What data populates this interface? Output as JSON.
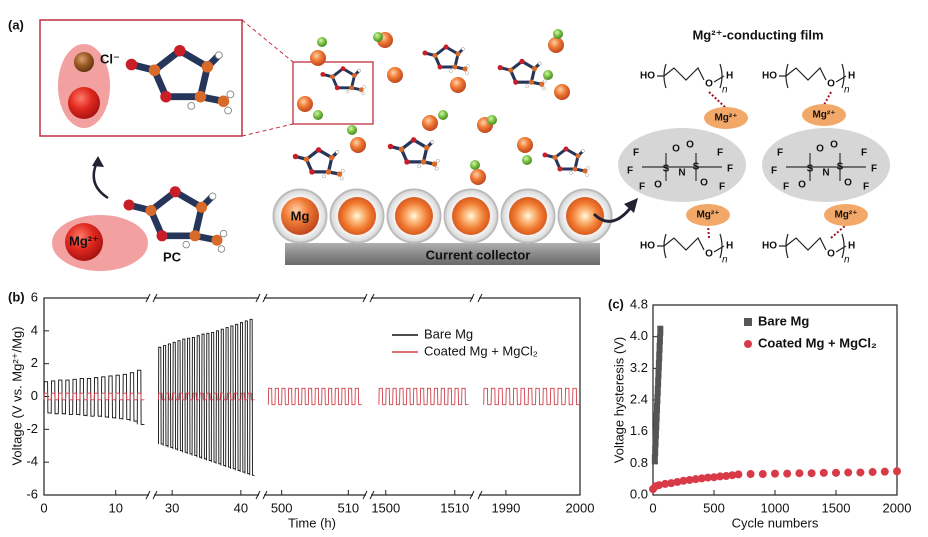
{
  "diagram": {
    "panel_label": "(a)",
    "inset_ion": "Cl⁻",
    "cation": "Mg²⁺",
    "solvent": "PC",
    "electrode": "Mg",
    "collector": "Current collector",
    "film_title": "Mg²⁺-conducting film",
    "film_cations": [
      "Mg²⁺",
      "Mg²⁺",
      "Mg²⁺",
      "Mg²⁺"
    ],
    "chains": [
      {
        "end1": "HO",
        "ether": "O",
        "end2": "H",
        "repeat": "n"
      },
      {
        "end1": "HO",
        "ether": "O",
        "end2": "H",
        "repeat": "n"
      },
      {
        "end1": "HO",
        "ether": "O",
        "end2": "H",
        "repeat": "n"
      },
      {
        "end1": "HO",
        "ether": "O",
        "end2": "H",
        "repeat": "n"
      }
    ],
    "anion_atoms": [
      "F",
      "F",
      "F",
      "O",
      "S",
      "O",
      "N",
      "O",
      "S",
      "O",
      "F",
      "F",
      "F"
    ]
  },
  "chart_data": [
    {
      "type": "line",
      "panel_label": "(b)",
      "xlabel": "Time (h)",
      "ylabel": "Voltage (V vs. Mg²⁺/Mg)",
      "x_segments": [
        [
          0,
          14.5
        ],
        [
          27.5,
          42.5
        ],
        [
          497.5,
          512.5
        ],
        [
          1498,
          1512.5
        ],
        [
          1986.5,
          2000
        ]
      ],
      "xticks": [
        0,
        10,
        30,
        40,
        500,
        510,
        1500,
        1510,
        1990,
        2000
      ],
      "ylim": [
        -6,
        6
      ],
      "yticks": [
        -6,
        -4,
        -2,
        0,
        2,
        4,
        6
      ],
      "legend": "upper right",
      "series": [
        {
          "name": "Bare Mg",
          "color": "#111111",
          "x": [
            0,
            1,
            2,
            3,
            4,
            5,
            6,
            7,
            8,
            9,
            10,
            11,
            12,
            13,
            28,
            28.7,
            29.4,
            30.1,
            30.8,
            31.5,
            32.2,
            32.9,
            33.6,
            34.3,
            35,
            35.7,
            36.4,
            37.1,
            37.8,
            38.5,
            39.2,
            39.9,
            40.6,
            41.3
          ],
          "values": [
            0.9,
            0.95,
            1.0,
            1.0,
            1.05,
            1.1,
            1.1,
            1.15,
            1.2,
            1.25,
            1.3,
            1.35,
            1.45,
            1.6,
            3.0,
            3.1,
            3.2,
            3.3,
            3.4,
            3.5,
            3.55,
            3.6,
            3.7,
            3.8,
            3.85,
            3.9,
            4.0,
            4.1,
            4.2,
            4.3,
            4.4,
            4.5,
            4.6,
            4.7
          ],
          "lower": [
            -1.0,
            -1.05,
            -1.05,
            -1.1,
            -1.1,
            -1.15,
            -1.2,
            -1.2,
            -1.25,
            -1.3,
            -1.35,
            -1.4,
            -1.5,
            -1.7,
            -2.9,
            -3.0,
            -3.1,
            -3.2,
            -3.3,
            -3.4,
            -3.5,
            -3.6,
            -3.7,
            -3.8,
            -3.9,
            -4.0,
            -4.1,
            -4.2,
            -4.3,
            -4.4,
            -4.5,
            -4.6,
            -4.7,
            -4.8
          ]
        },
        {
          "name": "Coated Mg + MgCl₂",
          "color": "#d0404a",
          "x": [
            0,
            1,
            2,
            3,
            4,
            5,
            6,
            7,
            8,
            9,
            10,
            11,
            12,
            13,
            28,
            29,
            30,
            31,
            32,
            33,
            34,
            35,
            36,
            37,
            38,
            39,
            40,
            41,
            498,
            499,
            500,
            501,
            502,
            503,
            504,
            505,
            506,
            507,
            508,
            509,
            510,
            511,
            1499,
            1500,
            1501,
            1502,
            1503,
            1504,
            1505,
            1506,
            1507,
            1508,
            1509,
            1510,
            1511,
            1987,
            1988,
            1989,
            1990,
            1991,
            1992,
            1993,
            1994,
            1995,
            1996,
            1997,
            1998,
            1999
          ],
          "values": [
            0.2,
            0.2,
            0.2,
            0.2,
            0.2,
            0.2,
            0.2,
            0.2,
            0.2,
            0.2,
            0.2,
            0.2,
            0.2,
            0.2,
            0.2,
            0.2,
            0.2,
            0.2,
            0.2,
            0.2,
            0.2,
            0.2,
            0.2,
            0.2,
            0.2,
            0.2,
            0.2,
            0.2,
            0.5,
            0.5,
            0.5,
            0.5,
            0.5,
            0.5,
            0.5,
            0.5,
            0.5,
            0.5,
            0.5,
            0.5,
            0.5,
            0.5,
            0.5,
            0.5,
            0.5,
            0.5,
            0.5,
            0.5,
            0.5,
            0.5,
            0.5,
            0.5,
            0.5,
            0.5,
            0.5,
            0.5,
            0.5,
            0.5,
            0.5,
            0.5,
            0.5,
            0.5,
            0.5,
            0.5,
            0.5,
            0.5,
            0.5,
            0.5
          ],
          "lower": [
            -0.2,
            -0.2,
            -0.2,
            -0.2,
            -0.2,
            -0.2,
            -0.2,
            -0.2,
            -0.2,
            -0.2,
            -0.2,
            -0.2,
            -0.2,
            -0.2,
            -0.2,
            -0.2,
            -0.2,
            -0.2,
            -0.2,
            -0.2,
            -0.2,
            -0.2,
            -0.2,
            -0.2,
            -0.2,
            -0.2,
            -0.2,
            -0.2,
            -0.5,
            -0.5,
            -0.5,
            -0.5,
            -0.5,
            -0.5,
            -0.5,
            -0.5,
            -0.5,
            -0.5,
            -0.5,
            -0.5,
            -0.5,
            -0.5,
            -0.5,
            -0.5,
            -0.5,
            -0.5,
            -0.5,
            -0.5,
            -0.5,
            -0.5,
            -0.5,
            -0.5,
            -0.5,
            -0.5,
            -0.5,
            -0.5,
            -0.5,
            -0.5,
            -0.5,
            -0.5,
            -0.5,
            -0.5,
            -0.5,
            -0.5,
            -0.5,
            -0.5,
            -0.5,
            -0.5
          ]
        }
      ]
    },
    {
      "type": "scatter",
      "panel_label": "(c)",
      "xlabel": "Cycle numbers",
      "ylabel": "Voltage hysteresis (V)",
      "xlim": [
        0,
        2000
      ],
      "xticks": [
        0,
        500,
        1000,
        1500,
        2000
      ],
      "ylim": [
        0,
        4.8
      ],
      "yticks": [
        {
          "value": 0,
          "label": "0.0"
        },
        {
          "value": 0.8,
          "label": "0.8"
        },
        {
          "value": 1.6,
          "label": "1.6"
        },
        {
          "value": 2.4,
          "label": "2.4"
        },
        {
          "value": 3.2,
          "label": "3.2"
        },
        {
          "value": 4.0,
          "label": "4.0"
        },
        {
          "value": 4.8,
          "label": "4.8"
        }
      ],
      "legend": "upper right",
      "series": [
        {
          "name": "Bare Mg",
          "color": "#555555",
          "marker": "square",
          "x": [
            15,
            18,
            21,
            24,
            27,
            30,
            33,
            36,
            39,
            42,
            45,
            48,
            51,
            54,
            57,
            60
          ],
          "values": [
            0.9,
            1.12,
            1.33,
            1.55,
            1.77,
            1.98,
            2.2,
            2.42,
            2.63,
            2.85,
            3.07,
            3.28,
            3.5,
            3.72,
            3.93,
            4.15
          ]
        },
        {
          "name": "Coated Mg + MgCl₂",
          "color": "#d93a48",
          "marker": "circle",
          "x": [
            0,
            20,
            50,
            100,
            150,
            200,
            250,
            300,
            350,
            400,
            450,
            500,
            550,
            600,
            650,
            700,
            800,
            900,
            1000,
            1100,
            1200,
            1300,
            1400,
            1500,
            1600,
            1700,
            1800,
            1900,
            2000
          ],
          "values": [
            0.15,
            0.22,
            0.25,
            0.28,
            0.3,
            0.33,
            0.36,
            0.38,
            0.4,
            0.42,
            0.44,
            0.45,
            0.47,
            0.48,
            0.5,
            0.52,
            0.53,
            0.53,
            0.54,
            0.54,
            0.55,
            0.55,
            0.56,
            0.56,
            0.57,
            0.57,
            0.58,
            0.59,
            0.6
          ]
        }
      ]
    }
  ]
}
